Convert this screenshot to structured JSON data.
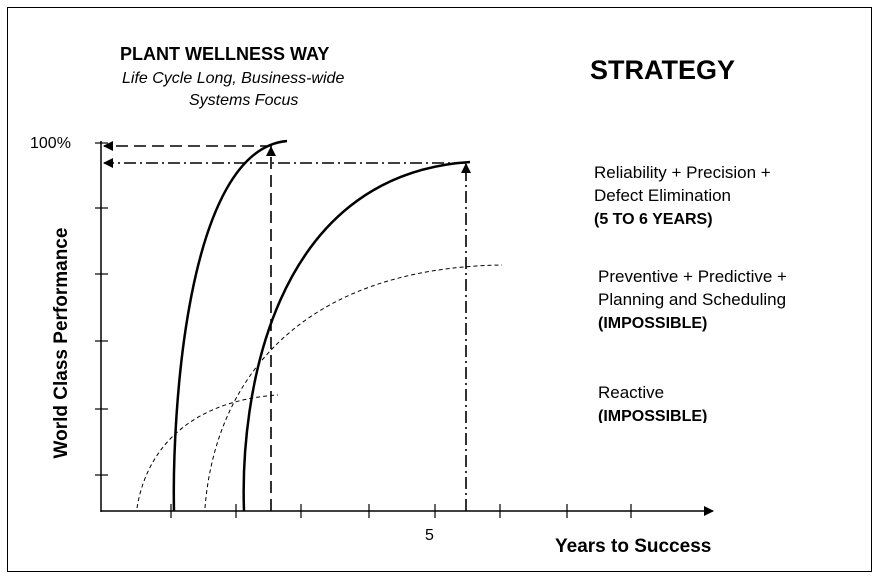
{
  "header": {
    "title": "PLANT WELLNESS WAY",
    "subtitle_line1": "Life Cycle Long, Business-wide",
    "subtitle_line2": "Systems Focus"
  },
  "strategy_heading": "STRATEGY",
  "axes": {
    "y_label": "World Class Performance",
    "x_label": "Years to Success",
    "y_tick_top": "100%",
    "x_tick_5": "5"
  },
  "strategies": [
    {
      "line1": "Reliability  +  Precision  +",
      "line2": "Defect Elimination",
      "note": "(5 TO 6 YEARS)"
    },
    {
      "line1": "Preventive + Predictive +",
      "line2": "Planning and Scheduling",
      "note": "(IMPOSSIBLE)"
    },
    {
      "line1": "Reactive",
      "line2": "",
      "note": "(IMPOSSIBLE)"
    }
  ]
}
